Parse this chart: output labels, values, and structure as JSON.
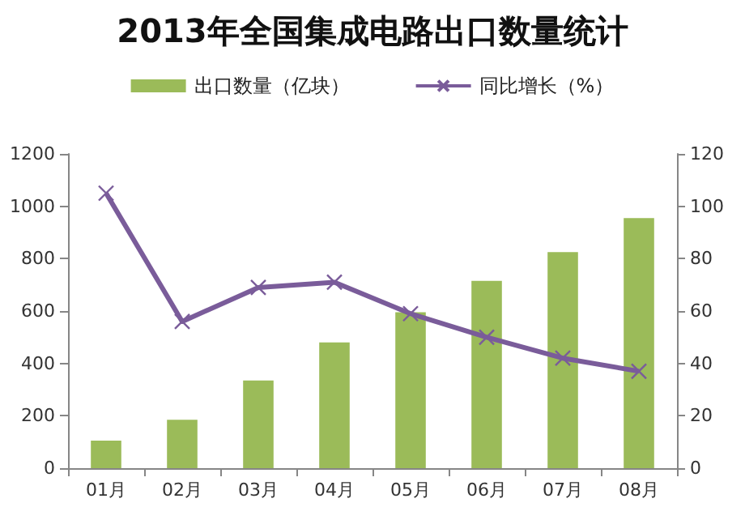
{
  "chart_data": {
    "type": "bar",
    "title": "2013年全国集成电路出口数量统计",
    "categories": [
      "01月",
      "02月",
      "03月",
      "04月",
      "05月",
      "06月",
      "07月",
      "08月"
    ],
    "series": [
      {
        "name": "出口数量（亿块）",
        "color": "#9bbb59",
        "values": [
          105,
          185,
          335,
          480,
          595,
          715,
          825,
          955
        ]
      },
      {
        "name": "同比增长（%）",
        "type": "line",
        "axis": "y2",
        "color": "#7a5c9a",
        "marker": "cross",
        "values": [
          105,
          56,
          69,
          71,
          59,
          50,
          42,
          37
        ]
      }
    ],
    "ylim": [
      0,
      1200
    ],
    "yticks": [
      0,
      200,
      400,
      600,
      800,
      1000,
      1200
    ],
    "y2lim": [
      0,
      120
    ],
    "y2ticks": [
      0,
      20,
      40,
      60,
      80,
      100,
      120
    ],
    "legend": "top",
    "grid": false
  }
}
